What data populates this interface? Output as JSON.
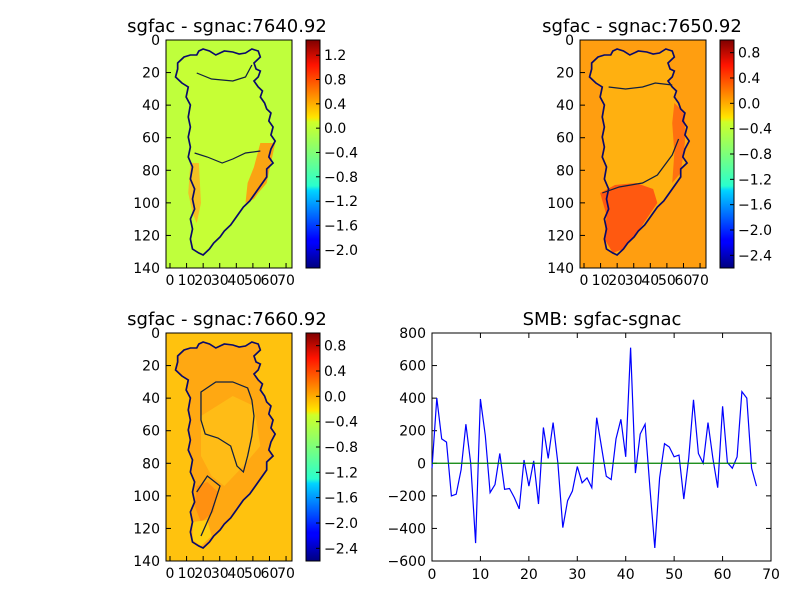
{
  "figure": {
    "panels": [
      {
        "id": "map1",
        "title": "sgfac - sgnac:7640.92",
        "background_color": "#bfff3c",
        "interior_color": "#c6ff35",
        "east_edge_color": "#ff9a10",
        "y_ticks": [
          "0",
          "20",
          "40",
          "60",
          "80",
          "100",
          "120",
          "140"
        ],
        "x_ticks": [
          "0",
          "10",
          "20",
          "30",
          "40",
          "50",
          "60",
          "70"
        ],
        "colorbar": {
          "ticks": [
            "1.2",
            "0.8",
            "0.4",
            "0.0",
            "−0.4",
            "−0.8",
            "−1.2",
            "−1.6",
            "−2.0"
          ],
          "vmin": -2.3,
          "vmax": 1.45
        }
      },
      {
        "id": "map2",
        "title": "sgfac - sgnac:7650.92",
        "background_color": "#ff9e10",
        "interior_color": "#ffb010",
        "east_edge_color": "#ff6010",
        "south_color": "#ff4a10",
        "y_ticks": [
          "0",
          "20",
          "40",
          "60",
          "80",
          "100",
          "120",
          "140"
        ],
        "x_ticks": [
          "0",
          "10",
          "20",
          "30",
          "40",
          "50",
          "60",
          "70"
        ],
        "colorbar": {
          "ticks": [
            "0.8",
            "0.4",
            "0.0",
            "−0.4",
            "−0.8",
            "−1.2",
            "−1.6",
            "−2.0",
            "−2.4"
          ],
          "vmin": -2.6,
          "vmax": 1.0
        }
      },
      {
        "id": "map3",
        "title": "sgfac - sgnac:7660.92",
        "background_color": "#ffc20e",
        "interior_color": "#ffa812",
        "east_edge_color": "#ff8a12",
        "south_color": "#ffd010",
        "y_ticks": [
          "0",
          "20",
          "40",
          "60",
          "80",
          "100",
          "120",
          "140"
        ],
        "x_ticks": [
          "0",
          "10",
          "20",
          "30",
          "40",
          "50",
          "60",
          "70"
        ],
        "colorbar": {
          "ticks": [
            "0.8",
            "0.4",
            "0.0",
            "−0.4",
            "−0.8",
            "−1.2",
            "−1.6",
            "−2.0",
            "−2.4"
          ],
          "vmin": -2.6,
          "vmax": 1.0
        }
      }
    ]
  },
  "chart_data": {
    "type": "line",
    "title": "SMB: sgfac-sgnac",
    "xlabel": "",
    "ylabel": "",
    "xlim": [
      0,
      70
    ],
    "ylim": [
      -600,
      800
    ],
    "x_ticks": [
      "0",
      "10",
      "20",
      "30",
      "40",
      "50",
      "60",
      "70"
    ],
    "y_ticks": [
      "800",
      "600",
      "400",
      "200",
      "0",
      "−200",
      "−400",
      "−600"
    ],
    "grid": false,
    "series": [
      {
        "color": "#0000ff",
        "values": [
          -30,
          400,
          150,
          130,
          -200,
          -190,
          -40,
          240,
          0,
          -490,
          395,
          170,
          -180,
          -130,
          60,
          -160,
          -155,
          -210,
          -280,
          20,
          -140,
          15,
          -250,
          220,
          30,
          250,
          0,
          -395,
          -230,
          -170,
          -20,
          -120,
          -90,
          -150,
          280,
          100,
          -80,
          -100,
          150,
          270,
          40,
          710,
          -60,
          180,
          240,
          -150,
          -520,
          -90,
          120,
          100,
          40,
          50,
          -220,
          30,
          390,
          60,
          0,
          250,
          30,
          -150,
          350,
          5,
          -30,
          40,
          440,
          400,
          -30,
          -140
        ]
      },
      {
        "color": "#008000",
        "values": [
          0,
          0
        ]
      }
    ],
    "zero_line_x": [
      0,
      67
    ]
  }
}
